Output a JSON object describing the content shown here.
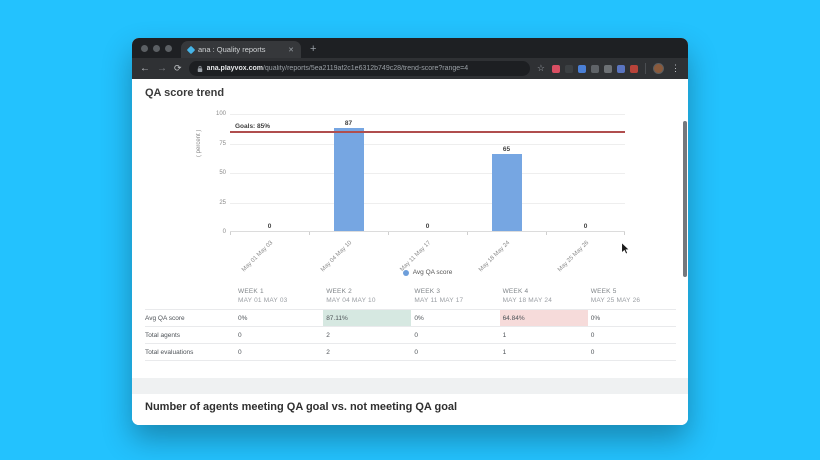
{
  "colors": {
    "desktop_bg": "#23c2fe",
    "bar": "#76a6e2",
    "goal_line": "#b04e4e",
    "legend_dot": "#6d9eda",
    "cell_green": "#d6e8e1",
    "cell_red": "#f6dbda"
  },
  "browser": {
    "tab_title": "ana : Quality reports",
    "url_domain": "ana.playvox.com",
    "url_path": "/quality/reports/5ea2119af2c1e6312b749c28/trend-score?range=4",
    "icons": {
      "back": "←",
      "forward": "→",
      "reload": "⟳",
      "close_tab": "✕",
      "new_tab": "+",
      "bookmark": "☆",
      "menu": "⋮"
    },
    "extension_colors": [
      "#d94f63",
      "#3c4043",
      "#4a7fd6",
      "#5f6368",
      "#6d7175",
      "#5a74c0",
      "#b8433a"
    ]
  },
  "page": {
    "title": "QA score trend",
    "section2_title": "Number of agents meeting QA goal vs. not meeting QA goal"
  },
  "chart_data": {
    "type": "bar",
    "title": "QA score trend",
    "xlabel": "",
    "ylabel": "( percent )",
    "ylim": [
      0,
      100
    ],
    "yticks": [
      0,
      25,
      50,
      75,
      100
    ],
    "grid": true,
    "legend_position": "bottom",
    "goal_value": 85,
    "goal_label": "Goals: 85%",
    "categories": [
      "May 01 May 03",
      "May 04 May 10",
      "May 11 May 17",
      "May 18 May 24",
      "May 25 May 26"
    ],
    "series": [
      {
        "name": "Avg QA score",
        "values": [
          0,
          87,
          0,
          65,
          0
        ]
      }
    ]
  },
  "table": {
    "header": [
      {
        "week": "WEEK 1",
        "dates": "MAY 01 MAY 03"
      },
      {
        "week": "WEEK 2",
        "dates": "MAY 04 MAY 10"
      },
      {
        "week": "WEEK 3",
        "dates": "MAY 11 MAY 17"
      },
      {
        "week": "WEEK 4",
        "dates": "MAY 18 MAY 24"
      },
      {
        "week": "WEEK 5",
        "dates": "MAY 25 MAY 26"
      }
    ],
    "rows": [
      {
        "label": "Avg QA score",
        "values": [
          "0%",
          "87.11%",
          "0%",
          "64.84%",
          "0%"
        ],
        "cell_bg": [
          "",
          "green",
          "",
          "red",
          ""
        ]
      },
      {
        "label": "Total agents",
        "values": [
          "0",
          "2",
          "0",
          "1",
          "0"
        ],
        "cell_bg": [
          "",
          "",
          "",
          "",
          ""
        ]
      },
      {
        "label": "Total evaluations",
        "values": [
          "0",
          "2",
          "0",
          "1",
          "0"
        ],
        "cell_bg": [
          "",
          "",
          "",
          "",
          ""
        ]
      }
    ]
  }
}
